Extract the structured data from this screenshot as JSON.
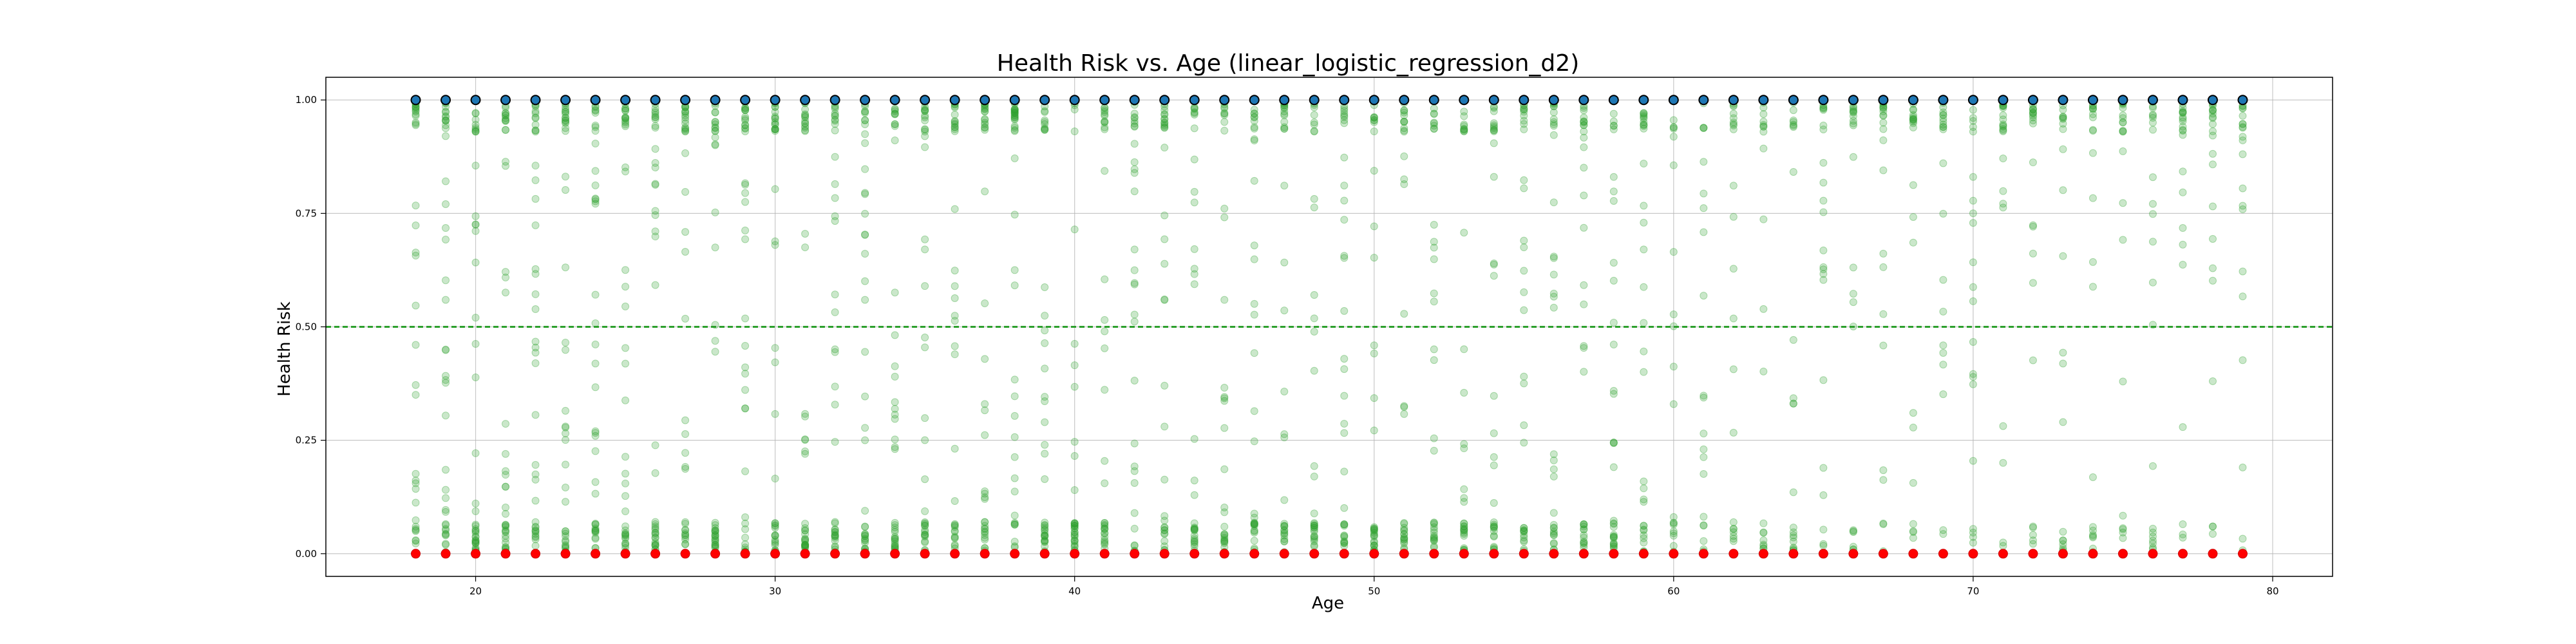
{
  "chart_data": {
    "type": "scatter",
    "title": "Health Risk vs. Age (linear_logistic_regression_d2)",
    "xlabel": "Age",
    "ylabel": "Health Risk",
    "xlim": [
      15,
      82
    ],
    "ylim": [
      -0.05,
      1.05
    ],
    "xticks": [
      20,
      30,
      40,
      50,
      60,
      70,
      80
    ],
    "yticks": [
      0.0,
      0.25,
      0.5,
      0.75,
      1.0
    ],
    "ytick_labels": [
      "0.00",
      "0.25",
      "0.50",
      "0.75",
      "1.00"
    ],
    "grid": true,
    "threshold": 0.5,
    "x_range": [
      18,
      79
    ],
    "series": [
      {
        "role": "predicted-probability",
        "color": "#2ca02c",
        "alpha": 0.25,
        "marker": "circle",
        "description_values": "per-age scatter of predicted probabilities spanning 0.0 to 1.0, densest near 0 and 1"
      },
      {
        "role": "actual-positive",
        "color": "#1f77b4",
        "edge": "#000000",
        "y": 1.0,
        "x": [
          18,
          19,
          20,
          21,
          22,
          23,
          24,
          25,
          26,
          27,
          28,
          29,
          30,
          31,
          32,
          33,
          34,
          35,
          36,
          37,
          38,
          39,
          40,
          41,
          42,
          43,
          44,
          45,
          46,
          47,
          48,
          49,
          50,
          51,
          52,
          53,
          54,
          55,
          56,
          57,
          58,
          59,
          60,
          61,
          62,
          63,
          64,
          65,
          66,
          67,
          68,
          69,
          70,
          71,
          72,
          73,
          74,
          75,
          76,
          77,
          78,
          79
        ]
      },
      {
        "role": "actual-negative",
        "color": "#ff0000",
        "y": 0.0,
        "x": [
          18,
          19,
          20,
          21,
          22,
          23,
          24,
          25,
          26,
          27,
          28,
          29,
          30,
          31,
          32,
          33,
          34,
          35,
          36,
          37,
          38,
          39,
          40,
          41,
          42,
          43,
          44,
          45,
          46,
          47,
          48,
          49,
          50,
          51,
          52,
          53,
          54,
          55,
          56,
          57,
          58,
          59,
          60,
          61,
          62,
          63,
          64,
          65,
          66,
          67,
          68,
          69,
          70,
          71,
          72,
          73,
          74,
          75,
          76,
          77,
          78,
          79
        ]
      }
    ],
    "colors": {
      "threshold_line": "#2ca02c",
      "grid": "#b0b0b0",
      "axes": "#000000"
    }
  }
}
